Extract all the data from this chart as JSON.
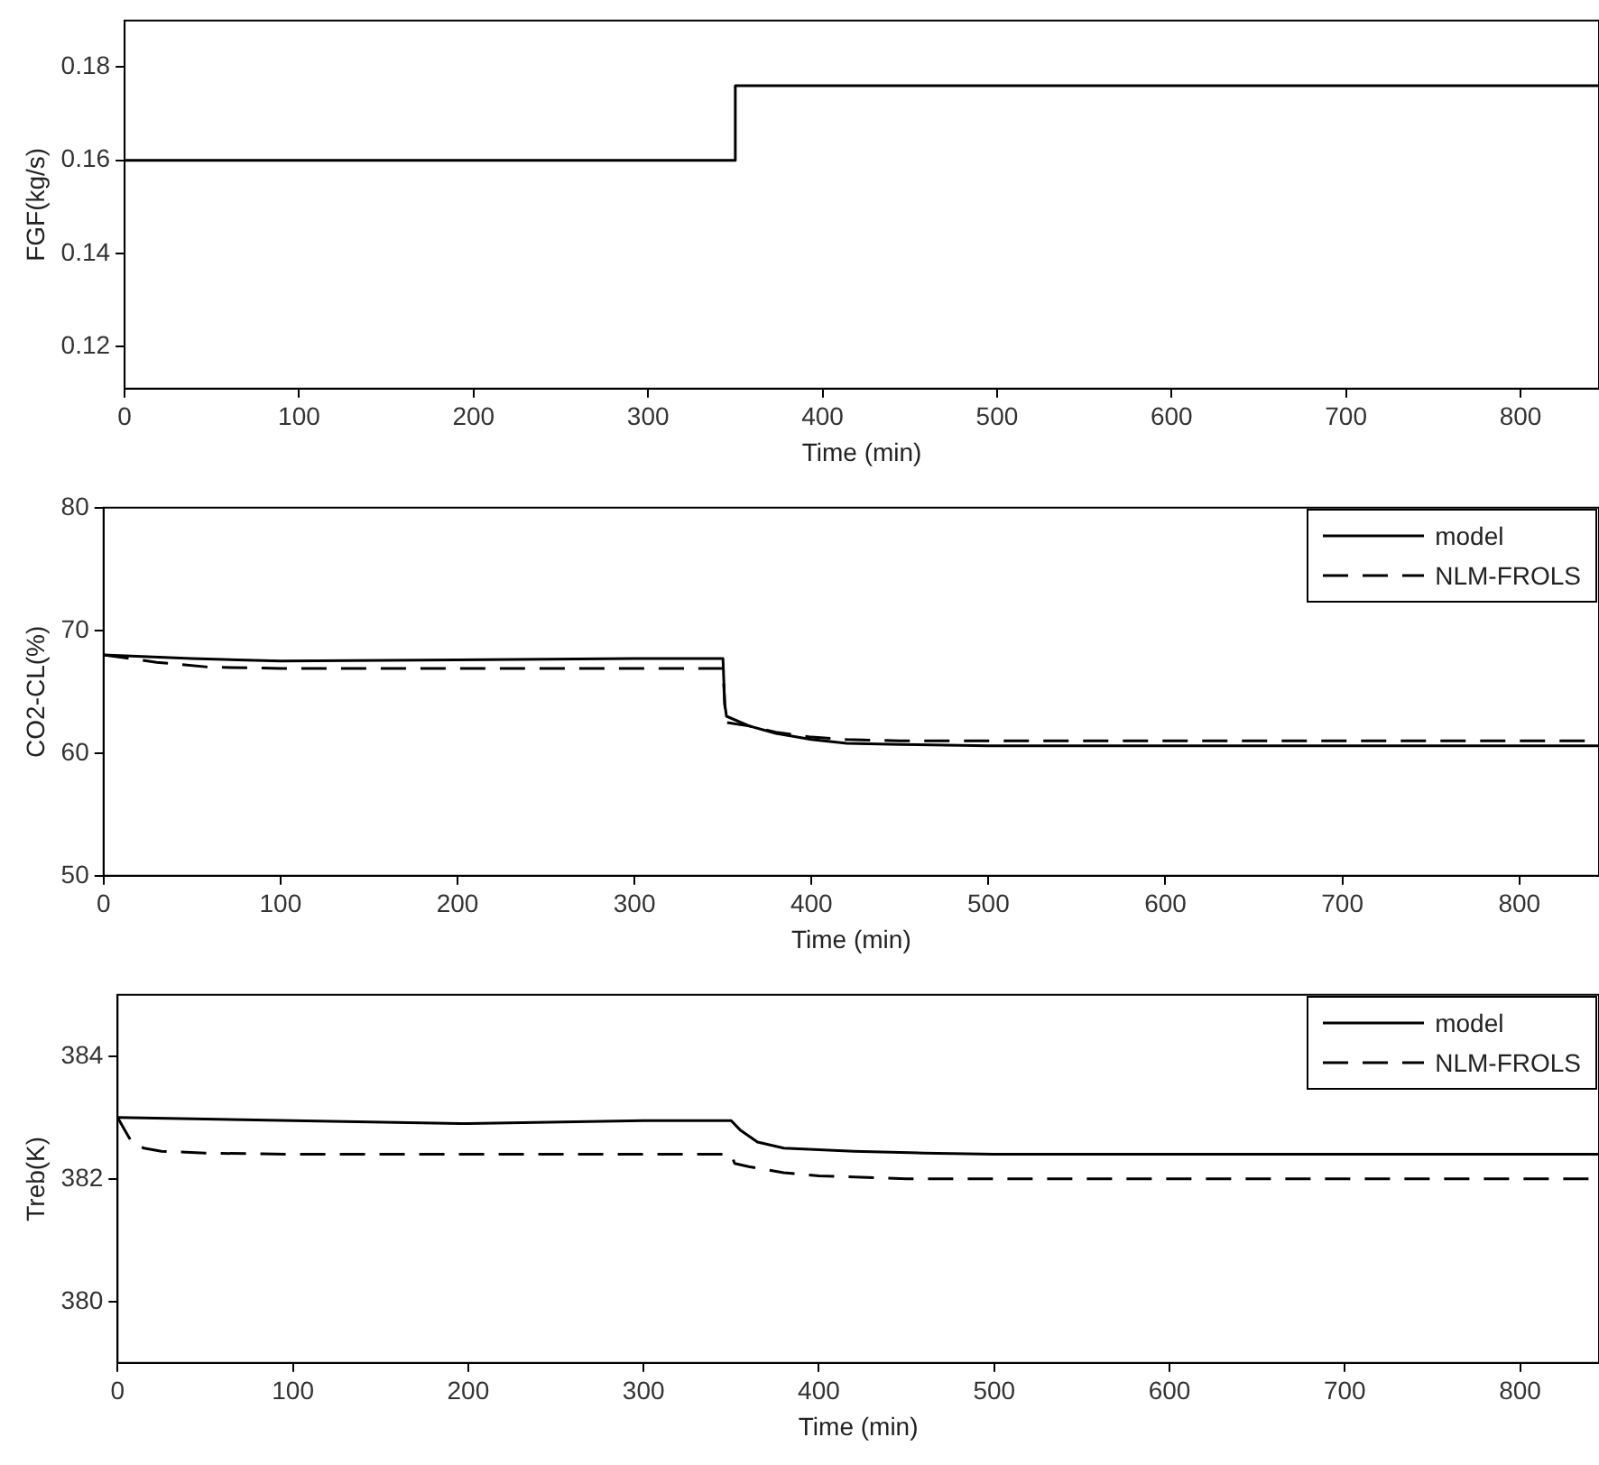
{
  "chart_data": [
    {
      "type": "step",
      "xlabel": "Time (min)",
      "ylabel": "FGF(kg/s)",
      "x": [
        0,
        350,
        845
      ],
      "values": [
        0.16,
        0.176,
        0.176
      ],
      "color": "#000000",
      "xlim": [
        0,
        845
      ],
      "xticks": [
        0,
        100,
        200,
        300,
        400,
        500,
        600,
        700,
        800
      ],
      "ylim": [
        0.111,
        0.19
      ],
      "yticks": [
        0.12,
        0.14,
        0.16,
        0.18
      ],
      "grid": false,
      "legend": false,
      "line_style": "solid",
      "marker": "none"
    },
    {
      "type": "line",
      "xlabel": "Time (min)",
      "ylabel": "CO2-CL(%)",
      "xlim": [
        0,
        845
      ],
      "xticks": [
        0,
        100,
        200,
        300,
        400,
        500,
        600,
        700,
        800
      ],
      "ylim": [
        50,
        80
      ],
      "yticks": [
        50,
        60,
        70,
        80
      ],
      "grid": false,
      "legend": "top right",
      "marker": "none",
      "series": [
        {
          "name": "model",
          "color": "#000000",
          "line_style": "solid",
          "x": [
            0,
            50,
            100,
            200,
            300,
            350,
            351,
            352,
            365,
            380,
            400,
            420,
            450,
            500,
            600,
            700,
            845
          ],
          "values": [
            68,
            67.7,
            67.5,
            67.6,
            67.7,
            67.7,
            64,
            63,
            62.2,
            61.6,
            61.1,
            60.8,
            60.7,
            60.6,
            60.6,
            60.6,
            60.6
          ]
        },
        {
          "name": "NLM-FROLS",
          "color": "#000000",
          "line_style": "dashed",
          "x": [
            0,
            30,
            60,
            100,
            200,
            300,
            350,
            351,
            352,
            365,
            380,
            400,
            420,
            450,
            500,
            600,
            700,
            845
          ],
          "values": [
            68,
            67.4,
            67,
            66.9,
            66.9,
            66.9,
            66.9,
            64,
            62.5,
            62.2,
            61.7,
            61.3,
            61.1,
            61,
            61,
            61,
            61,
            61
          ]
        }
      ]
    },
    {
      "type": "line",
      "xlabel": "Time (min)",
      "ylabel": "Treb(K)",
      "xlim": [
        0,
        845
      ],
      "xticks": [
        0,
        100,
        200,
        300,
        400,
        500,
        600,
        700,
        800
      ],
      "ylim": [
        379,
        385
      ],
      "yticks": [
        380,
        382,
        384
      ],
      "grid": false,
      "legend": "top right",
      "marker": "none",
      "series": [
        {
          "name": "model",
          "color": "#000000",
          "line_style": "solid",
          "x": [
            0,
            100,
            200,
            300,
            350,
            355,
            365,
            380,
            420,
            460,
            500,
            600,
            700,
            845
          ],
          "values": [
            383,
            382.95,
            382.9,
            382.95,
            382.95,
            382.8,
            382.6,
            382.5,
            382.45,
            382.42,
            382.4,
            382.4,
            382.4,
            382.4
          ]
        },
        {
          "name": "NLM-FROLS",
          "color": "#000000",
          "line_style": "dashed",
          "x": [
            0,
            4,
            8,
            15,
            25,
            50,
            100,
            200,
            350,
            352,
            360,
            380,
            400,
            450,
            500,
            600,
            700,
            845
          ],
          "values": [
            383,
            382.8,
            382.6,
            382.5,
            382.45,
            382.42,
            382.4,
            382.4,
            382.4,
            382.25,
            382.2,
            382.1,
            382.05,
            382,
            382,
            382,
            382,
            382
          ]
        }
      ]
    }
  ]
}
